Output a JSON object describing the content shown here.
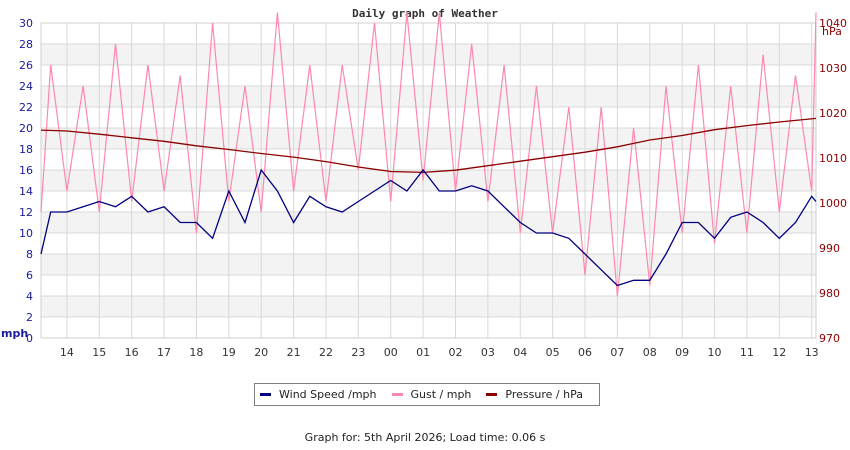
{
  "chart_data": {
    "type": "line",
    "title": "Daily graph of Weather",
    "left_axis": {
      "label": "mph",
      "ylim": [
        0,
        30
      ],
      "ticks": [
        0,
        2,
        4,
        6,
        8,
        10,
        12,
        14,
        16,
        18,
        20,
        22,
        24,
        26,
        28,
        30
      ],
      "color": "#1a1a9c"
    },
    "right_axis": {
      "label": "hPa",
      "ylim": [
        970,
        1040
      ],
      "ticks": [
        970,
        980,
        990,
        1000,
        1010,
        1020,
        1030,
        1040
      ],
      "color": "#8b0000"
    },
    "x_tick_labels": [
      "14",
      "15",
      "16",
      "17",
      "18",
      "19",
      "20",
      "21",
      "22",
      "23",
      "00",
      "01",
      "02",
      "03",
      "04",
      "05",
      "06",
      "07",
      "08",
      "09",
      "10",
      "11",
      "12",
      "13"
    ],
    "grid": true,
    "legend_position": "bottom",
    "series": [
      {
        "name": "Wind Speed /mph",
        "axis": "left",
        "color": "#000080",
        "x": [
          "13:12",
          "13:30",
          "14:00",
          "14:30",
          "15:00",
          "15:30",
          "16:00",
          "16:30",
          "17:00",
          "17:30",
          "18:00",
          "18:30",
          "19:00",
          "19:30",
          "20:00",
          "20:30",
          "21:00",
          "21:30",
          "22:00",
          "22:30",
          "23:00",
          "23:30",
          "00:00",
          "00:30",
          "01:00",
          "01:30",
          "02:00",
          "02:30",
          "03:00",
          "03:30",
          "04:00",
          "04:30",
          "05:00",
          "05:30",
          "06:00",
          "06:30",
          "07:00",
          "07:30",
          "08:00",
          "08:30",
          "09:00",
          "09:30",
          "10:00",
          "10:30",
          "11:00",
          "11:30",
          "12:00",
          "12:30",
          "13:00",
          "13:08"
        ],
        "values": [
          8,
          12,
          12,
          12.5,
          13,
          12.5,
          13.5,
          12,
          12.5,
          11,
          11,
          9.5,
          14,
          11,
          16,
          14,
          11,
          13.5,
          12.5,
          12,
          13,
          14,
          15,
          14,
          16,
          14,
          14,
          14.5,
          14,
          12.5,
          11,
          10,
          10,
          9.5,
          8,
          6.5,
          5,
          5.5,
          5.5,
          8,
          11,
          11,
          9.5,
          11.5,
          12,
          11,
          9.5,
          11,
          13.5,
          13
        ]
      },
      {
        "name": "Gust / mph",
        "axis": "left",
        "color": "#ff88aa",
        "x": [
          "13:12",
          "13:30",
          "14:00",
          "14:30",
          "15:00",
          "15:30",
          "16:00",
          "16:30",
          "17:00",
          "17:30",
          "18:00",
          "18:30",
          "19:00",
          "19:30",
          "20:00",
          "20:30",
          "21:00",
          "21:30",
          "22:00",
          "22:30",
          "23:00",
          "23:30",
          "00:00",
          "00:30",
          "01:00",
          "01:30",
          "02:00",
          "02:30",
          "03:00",
          "03:30",
          "04:00",
          "04:30",
          "05:00",
          "05:30",
          "06:00",
          "06:30",
          "07:00",
          "07:30",
          "08:00",
          "08:30",
          "09:00",
          "09:30",
          "10:00",
          "10:30",
          "11:00",
          "11:30",
          "12:00",
          "12:30",
          "13:00",
          "13:08"
        ],
        "values": [
          12,
          26,
          14,
          24,
          12,
          28,
          13,
          26,
          14,
          25,
          10,
          30,
          13,
          24,
          12,
          31,
          14,
          26,
          13,
          26,
          16,
          30,
          13,
          31,
          15,
          31,
          14,
          28,
          13,
          26,
          10,
          24,
          10,
          22,
          6,
          22,
          4,
          20,
          5,
          24,
          10,
          26,
          9,
          24,
          10,
          27,
          12,
          25,
          14,
          31
        ]
      },
      {
        "name": "Pressure / hPa",
        "axis": "right",
        "color": "#8b0000",
        "x": [
          "13:12",
          "14:00",
          "15:00",
          "16:00",
          "17:00",
          "18:00",
          "19:00",
          "20:00",
          "21:00",
          "22:00",
          "23:00",
          "00:00",
          "01:00",
          "02:00",
          "03:00",
          "04:00",
          "05:00",
          "06:00",
          "07:00",
          "08:00",
          "09:00",
          "10:00",
          "11:00",
          "12:00",
          "13:08"
        ],
        "values": [
          1016.2,
          1016,
          1015.3,
          1014.5,
          1013.7,
          1012.7,
          1011.9,
          1011,
          1010.2,
          1009.2,
          1008,
          1007,
          1006.8,
          1007.3,
          1008.3,
          1009.3,
          1010.3,
          1011.3,
          1012.5,
          1014,
          1015,
          1016.3,
          1017.2,
          1018,
          1018.8
        ]
      }
    ]
  },
  "footer": "Graph for: 5th April 2026; Load time: 0.06 s"
}
